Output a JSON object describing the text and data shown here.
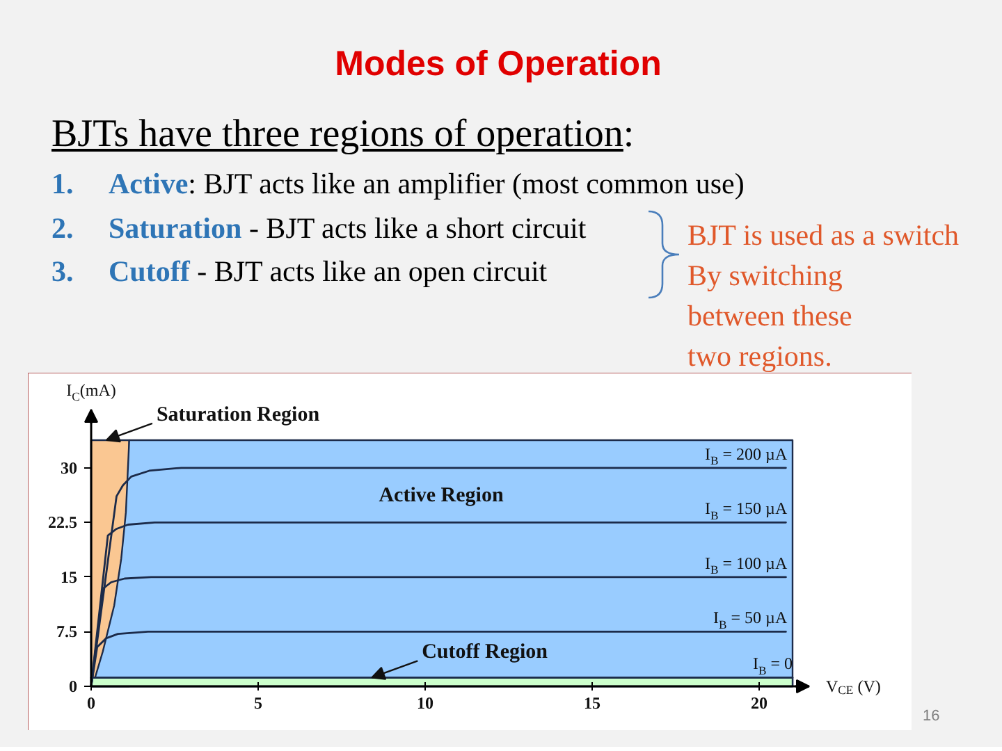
{
  "chart_data": {
    "type": "line",
    "title": "Modes of Operation",
    "subtitle": "BJTs have three regions of operation:",
    "xlabel": "V$_{CE}$ (V)",
    "ylabel": "I$_{C}$(mA)",
    "xlim": [
      0,
      21.5
    ],
    "ylim": [
      0,
      38
    ],
    "xticks": [
      0,
      5,
      10,
      15,
      20
    ],
    "yticks": [
      0,
      7.5,
      15,
      22.5,
      30
    ],
    "grid": false,
    "legend": false,
    "series": [
      {
        "type": "area",
        "name": "Saturation Region",
        "color": "#fac792",
        "x": [
          0,
          1.14
        ],
        "values": [
          33.8,
          33.8
        ]
      },
      {
        "type": "area",
        "name": "Active Region",
        "color": "#99ccff",
        "x": [
          0,
          0.04,
          0.35,
          0.69,
          0.9,
          1.04,
          1.14,
          21
        ],
        "values": [
          0,
          0,
          4.8,
          11.1,
          17.5,
          23.9,
          33.8,
          33.8
        ]
      },
      {
        "type": "area",
        "name": "Cutoff Region",
        "color": "#ccffcc",
        "x": [
          0,
          21
        ],
        "values": [
          1.2,
          1.2
        ]
      },
      {
        "name": "I$_{B}$ = 200 µA",
        "color": "#1c2b4a",
        "x": [
          0,
          0.76,
          0.95,
          1.2,
          1.74,
          2.7,
          20.8
        ],
        "values": [
          0,
          26.1,
          27.6,
          28.8,
          29.6,
          30,
          30
        ]
      },
      {
        "name": "I$_{B}$ = 150 µA",
        "color": "#1c2b4a",
        "x": [
          0,
          0.5,
          0.75,
          1.1,
          1.9,
          20.8
        ],
        "values": [
          0,
          20.7,
          21.6,
          22.2,
          22.5,
          22.5
        ]
      },
      {
        "name": "I$_{B}$ = 100 µA",
        "color": "#1c2b4a",
        "x": [
          0,
          0.35,
          0.6,
          1.0,
          1.8,
          20.8
        ],
        "values": [
          0,
          13.4,
          14.3,
          14.8,
          15,
          15
        ]
      },
      {
        "name": "I$_{B}$ = 50 µA",
        "color": "#1c2b4a",
        "x": [
          0,
          0.18,
          0.45,
          0.8,
          1.7,
          20.8
        ],
        "values": [
          0,
          5.4,
          6.6,
          7.2,
          7.5,
          7.5
        ]
      },
      {
        "name": "I$_{B}$ = 0",
        "color": "#1c2b4a",
        "x": [
          0,
          21
        ],
        "values": [
          1.2,
          1.2
        ]
      }
    ],
    "annotations": [
      "1. Active: BJT acts like an amplifier (most common use)",
      "2. Saturation - BJT acts like a short circuit",
      "3. Cutoff - BJT acts like an open circuit",
      "BJT is used as a switch\nBy switching\nbetween these\ntwo regions.",
      "16"
    ]
  }
}
